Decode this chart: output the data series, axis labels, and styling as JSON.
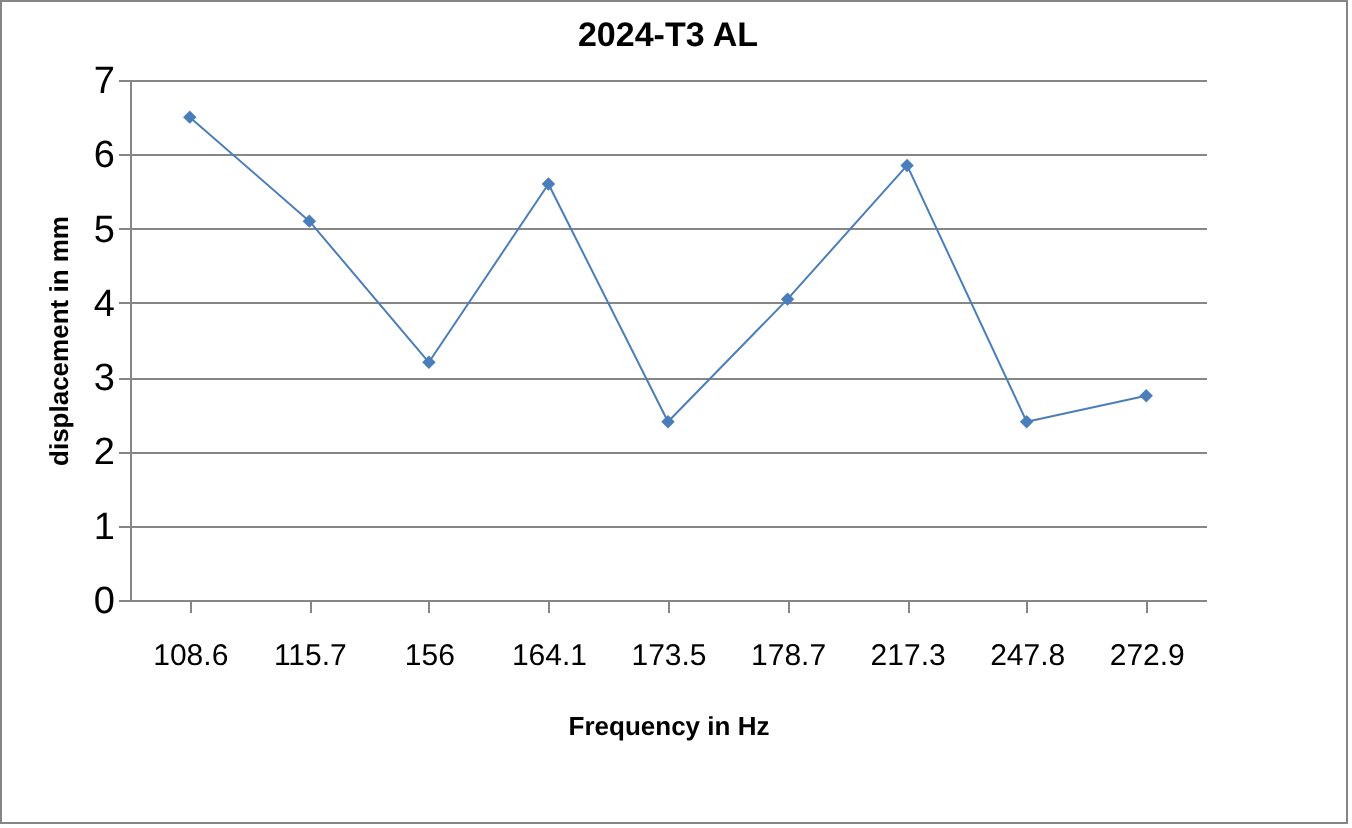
{
  "chart_data": {
    "type": "line",
    "title": "2024-T3 AL",
    "xlabel": "Frequency in Hz",
    "ylabel": "displacement in mm",
    "categories": [
      "108.6",
      "115.7",
      "156",
      "164.1",
      "173.5",
      "178.7",
      "217.3",
      "247.8",
      "272.9"
    ],
    "series": [
      {
        "color": "#4a7ebb",
        "values": [
          6.5,
          5.1,
          3.2,
          5.6,
          2.4,
          4.05,
          5.85,
          2.4,
          2.75
        ]
      }
    ],
    "ylim": [
      0,
      7
    ],
    "yticks": [
      0,
      1,
      2,
      3,
      4,
      5,
      6,
      7
    ],
    "grid": "y",
    "marker": "diamond",
    "line_style": "solid",
    "legend": false
  }
}
